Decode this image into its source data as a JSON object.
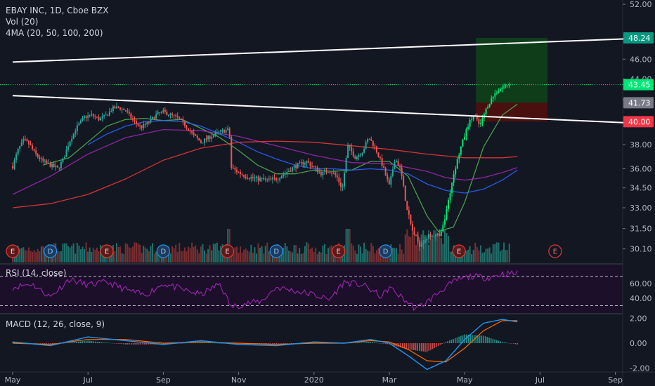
{
  "legend": {
    "title": "EBAY INC, 1D, Cboe BZX",
    "vol": "Vol (20)",
    "ma": "4MA (20, 50, 100, 200)",
    "rsi": "RSI (14, close)",
    "macd": "MACD (12, 26, close, 9)"
  },
  "colors": {
    "background": "#131722",
    "up": "#26a69a",
    "up_bright": "#00e676",
    "down": "#ef5350",
    "ma20": "#4caf50",
    "ma50": "#2962ff",
    "ma100": "#9c27b0",
    "ma200": "#e53935",
    "rsi": "#9c27b0",
    "macd": "#2196f3",
    "signal": "#ff6d00",
    "profit": "#0f3d1a",
    "loss": "#4a1010",
    "trendline": "#ffffff"
  },
  "chart_data": {
    "type": "line",
    "price_axis": {
      "ticks": [
        "52.00",
        "46.00",
        "44.00",
        "42.00",
        "38.00",
        "36.00",
        "34.50",
        "33.00",
        "31.50",
        "30.10"
      ],
      "ylim": [
        29.2,
        52.5
      ]
    },
    "badges": [
      {
        "label": "48.24",
        "value": 48.24,
        "color": "#089981"
      },
      {
        "label": "43.45",
        "value": 43.45,
        "color": "#00e676"
      },
      {
        "label": "41.73",
        "value": 41.73,
        "color": "#787b86"
      },
      {
        "label": "40.00",
        "value": 40.0,
        "color": "#f23645"
      }
    ],
    "time_axis": {
      "labels": [
        "May",
        "Jul",
        "Sep",
        "Nov",
        "2020",
        "Mar",
        "May",
        "Jul",
        "Sep"
      ],
      "months": [
        0,
        2,
        4,
        6,
        8,
        10,
        12,
        14,
        16
      ]
    },
    "price_series": [
      {
        "m": 0.0,
        "p": 36.2
      },
      {
        "m": 0.15,
        "p": 37.6
      },
      {
        "m": 0.3,
        "p": 38.4
      },
      {
        "m": 0.45,
        "p": 38.0
      },
      {
        "m": 0.6,
        "p": 37.2
      },
      {
        "m": 0.8,
        "p": 36.6
      },
      {
        "m": 1.0,
        "p": 36.3
      },
      {
        "m": 1.2,
        "p": 36.0
      },
      {
        "m": 1.35,
        "p": 36.8
      },
      {
        "m": 1.5,
        "p": 38.2
      },
      {
        "m": 1.7,
        "p": 39.5
      },
      {
        "m": 1.9,
        "p": 40.4
      },
      {
        "m": 2.1,
        "p": 40.6
      },
      {
        "m": 2.3,
        "p": 40.2
      },
      {
        "m": 2.5,
        "p": 40.6
      },
      {
        "m": 2.65,
        "p": 41.2
      },
      {
        "m": 2.8,
        "p": 41.3
      },
      {
        "m": 3.0,
        "p": 41.0
      },
      {
        "m": 3.2,
        "p": 40.1
      },
      {
        "m": 3.4,
        "p": 39.5
      },
      {
        "m": 3.6,
        "p": 39.9
      },
      {
        "m": 3.8,
        "p": 40.6
      },
      {
        "m": 4.0,
        "p": 40.9
      },
      {
        "m": 4.2,
        "p": 40.6
      },
      {
        "m": 4.4,
        "p": 40.3
      },
      {
        "m": 4.6,
        "p": 39.6
      },
      {
        "m": 4.8,
        "p": 38.8
      },
      {
        "m": 5.0,
        "p": 38.2
      },
      {
        "m": 5.2,
        "p": 38.6
      },
      {
        "m": 5.5,
        "p": 39.1
      },
      {
        "m": 5.75,
        "p": 39.3
      },
      {
        "m": 5.8,
        "p": 36.1
      },
      {
        "m": 6.0,
        "p": 35.7
      },
      {
        "m": 6.2,
        "p": 35.4
      },
      {
        "m": 6.5,
        "p": 35.2
      },
      {
        "m": 6.8,
        "p": 35.1
      },
      {
        "m": 7.0,
        "p": 35.2
      },
      {
        "m": 7.2,
        "p": 35.6
      },
      {
        "m": 7.5,
        "p": 36.2
      },
      {
        "m": 7.8,
        "p": 36.6
      },
      {
        "m": 8.0,
        "p": 36.1
      },
      {
        "m": 8.2,
        "p": 35.6
      },
      {
        "m": 8.4,
        "p": 35.9
      },
      {
        "m": 8.6,
        "p": 35.4
      },
      {
        "m": 8.75,
        "p": 34.4
      },
      {
        "m": 8.9,
        "p": 37.9
      },
      {
        "m": 9.1,
        "p": 36.9
      },
      {
        "m": 9.3,
        "p": 37.5
      },
      {
        "m": 9.45,
        "p": 38.6
      },
      {
        "m": 9.6,
        "p": 37.9
      },
      {
        "m": 9.8,
        "p": 36.4
      },
      {
        "m": 10.0,
        "p": 34.6
      },
      {
        "m": 10.15,
        "p": 36.9
      },
      {
        "m": 10.3,
        "p": 35.9
      },
      {
        "m": 10.45,
        "p": 33.2
      },
      {
        "m": 10.6,
        "p": 31.4
      },
      {
        "m": 10.8,
        "p": 30.4
      },
      {
        "m": 11.0,
        "p": 30.9
      },
      {
        "m": 11.2,
        "p": 31.1
      },
      {
        "m": 11.35,
        "p": 30.9
      },
      {
        "m": 11.5,
        "p": 32.5
      },
      {
        "m": 11.7,
        "p": 35.5
      },
      {
        "m": 11.9,
        "p": 37.8
      },
      {
        "m": 12.1,
        "p": 39.8
      },
      {
        "m": 12.25,
        "p": 40.6
      },
      {
        "m": 12.4,
        "p": 39.6
      },
      {
        "m": 12.6,
        "p": 41.4
      },
      {
        "m": 12.8,
        "p": 42.6
      },
      {
        "m": 13.0,
        "p": 43.2
      },
      {
        "m": 13.2,
        "p": 43.45
      }
    ],
    "moving_averages": [
      {
        "name": "MA20",
        "color_key": "ma20",
        "points": [
          [
            0.8,
            36.3
          ],
          [
            1.5,
            36.9
          ],
          [
            2.5,
            39.6
          ],
          [
            3.0,
            40.2
          ],
          [
            3.5,
            40.3
          ],
          [
            4.0,
            40.1
          ],
          [
            4.5,
            40.2
          ],
          [
            5.0,
            39.4
          ],
          [
            5.5,
            38.6
          ],
          [
            6.0,
            37.5
          ],
          [
            6.5,
            36.3
          ],
          [
            7.0,
            35.6
          ],
          [
            7.5,
            35.6
          ],
          [
            8.0,
            35.9
          ],
          [
            8.5,
            35.8
          ],
          [
            9.0,
            35.9
          ],
          [
            9.5,
            36.6
          ],
          [
            10.0,
            36.6
          ],
          [
            10.5,
            35.4
          ],
          [
            11.0,
            32.4
          ],
          [
            11.3,
            31.3
          ],
          [
            11.7,
            31.6
          ],
          [
            12.0,
            33.4
          ],
          [
            12.5,
            37.8
          ],
          [
            13.0,
            40.6
          ],
          [
            13.4,
            41.6
          ]
        ]
      },
      {
        "name": "MA50",
        "color_key": "ma50",
        "points": [
          [
            2.0,
            38.0
          ],
          [
            2.5,
            38.9
          ],
          [
            3.0,
            39.6
          ],
          [
            3.5,
            40.0
          ],
          [
            4.0,
            40.1
          ],
          [
            4.5,
            40.0
          ],
          [
            5.0,
            39.6
          ],
          [
            5.5,
            38.9
          ],
          [
            6.0,
            38.2
          ],
          [
            6.5,
            37.4
          ],
          [
            7.0,
            36.8
          ],
          [
            7.5,
            36.3
          ],
          [
            8.0,
            36.0
          ],
          [
            8.5,
            36.0
          ],
          [
            9.0,
            35.9
          ],
          [
            9.5,
            36.0
          ],
          [
            10.0,
            35.9
          ],
          [
            10.5,
            35.6
          ],
          [
            11.0,
            34.8
          ],
          [
            11.5,
            34.3
          ],
          [
            12.0,
            34.1
          ],
          [
            12.5,
            34.4
          ],
          [
            13.0,
            35.1
          ],
          [
            13.4,
            35.9
          ]
        ]
      },
      {
        "name": "MA100",
        "color_key": "ma100",
        "points": [
          [
            0.0,
            34.0
          ],
          [
            1.0,
            35.4
          ],
          [
            2.0,
            37.2
          ],
          [
            3.0,
            38.6
          ],
          [
            4.0,
            39.3
          ],
          [
            5.0,
            39.2
          ],
          [
            6.0,
            38.7
          ],
          [
            7.0,
            37.9
          ],
          [
            8.0,
            37.1
          ],
          [
            9.0,
            36.5
          ],
          [
            10.0,
            36.4
          ],
          [
            11.0,
            35.8
          ],
          [
            11.5,
            35.3
          ],
          [
            12.0,
            35.1
          ],
          [
            12.5,
            35.3
          ],
          [
            13.0,
            35.7
          ],
          [
            13.4,
            36.1
          ]
        ]
      },
      {
        "name": "MA200",
        "color_key": "ma200",
        "points": [
          [
            0.0,
            33.0
          ],
          [
            1.0,
            33.3
          ],
          [
            2.0,
            34.0
          ],
          [
            3.0,
            35.2
          ],
          [
            4.0,
            36.7
          ],
          [
            5.0,
            37.7
          ],
          [
            6.0,
            38.2
          ],
          [
            7.0,
            38.3
          ],
          [
            8.0,
            38.2
          ],
          [
            9.0,
            37.9
          ],
          [
            10.0,
            37.6
          ],
          [
            11.0,
            37.2
          ],
          [
            12.0,
            36.9
          ],
          [
            13.0,
            36.9
          ],
          [
            13.4,
            37.0
          ]
        ]
      }
    ],
    "trendlines": [
      {
        "from": [
          0.0,
          45.7
        ],
        "to": [
          17.0,
          48.24
        ]
      },
      {
        "from": [
          0.0,
          42.4
        ],
        "to": [
          17.0,
          39.8
        ]
      }
    ],
    "position": {
      "entry": 41.73,
      "target": 48.24,
      "stop": 40.0,
      "start_month": 12.3,
      "end_month": 14.2
    },
    "dotted_lines": [
      {
        "value": 43.45,
        "color": "#00e676"
      }
    ],
    "events": [
      {
        "label": "E",
        "m": 0.0,
        "type": "earnings"
      },
      {
        "label": "D",
        "m": 1.0,
        "type": "dividend"
      },
      {
        "label": "E",
        "m": 2.5,
        "type": "earnings"
      },
      {
        "label": "D",
        "m": 4.0,
        "type": "dividend"
      },
      {
        "label": "E",
        "m": 5.7,
        "type": "earnings"
      },
      {
        "label": "D",
        "m": 7.0,
        "type": "dividend"
      },
      {
        "label": "E",
        "m": 8.65,
        "type": "earnings"
      },
      {
        "label": "D",
        "m": 9.9,
        "type": "dividend"
      },
      {
        "label": "E",
        "m": 11.85,
        "type": "earnings"
      },
      {
        "label": "E",
        "m": 14.4,
        "type": "earnings-future"
      }
    ],
    "rsi": {
      "ticks": [
        "60.00",
        "40.00"
      ],
      "ylim": [
        20,
        85
      ],
      "upper": 70,
      "lower": 30,
      "points": [
        [
          0.0,
          55
        ],
        [
          0.5,
          60
        ],
        [
          1.0,
          42
        ],
        [
          1.5,
          66
        ],
        [
          2.0,
          58
        ],
        [
          2.5,
          62
        ],
        [
          3.0,
          52
        ],
        [
          3.5,
          44
        ],
        [
          4.0,
          60
        ],
        [
          4.5,
          52
        ],
        [
          5.0,
          45
        ],
        [
          5.5,
          60
        ],
        [
          5.8,
          28
        ],
        [
          6.2,
          33
        ],
        [
          6.6,
          36
        ],
        [
          7.0,
          55
        ],
        [
          7.5,
          50
        ],
        [
          8.0,
          45
        ],
        [
          8.4,
          38
        ],
        [
          8.8,
          62
        ],
        [
          9.3,
          58
        ],
        [
          9.8,
          42
        ],
        [
          10.0,
          55
        ],
        [
          10.4,
          38
        ],
        [
          10.7,
          26
        ],
        [
          11.0,
          35
        ],
        [
          11.4,
          52
        ],
        [
          11.8,
          65
        ],
        [
          12.2,
          70
        ],
        [
          12.6,
          68
        ],
        [
          13.0,
          73
        ],
        [
          13.4,
          74
        ]
      ]
    },
    "macd": {
      "ticks": [
        "2.00",
        "0.00",
        "-2.00"
      ],
      "ylim": [
        -2.3,
        2.3
      ],
      "macd_line": [
        [
          0.0,
          0.1
        ],
        [
          1.0,
          -0.2
        ],
        [
          2.0,
          0.5
        ],
        [
          3.0,
          0.2
        ],
        [
          4.0,
          -0.1
        ],
        [
          5.0,
          0.2
        ],
        [
          6.0,
          -0.1
        ],
        [
          7.0,
          -0.2
        ],
        [
          8.0,
          0.1
        ],
        [
          8.8,
          0.0
        ],
        [
          9.5,
          0.3
        ],
        [
          10.0,
          0.0
        ],
        [
          10.5,
          -1.0
        ],
        [
          11.0,
          -2.1
        ],
        [
          11.5,
          -1.4
        ],
        [
          12.0,
          0.3
        ],
        [
          12.5,
          1.6
        ],
        [
          13.0,
          1.9
        ],
        [
          13.4,
          1.7
        ]
      ],
      "signal_line": [
        [
          0.0,
          0.0
        ],
        [
          1.0,
          -0.1
        ],
        [
          2.0,
          0.3
        ],
        [
          3.0,
          0.3
        ],
        [
          4.0,
          0.0
        ],
        [
          5.0,
          0.1
        ],
        [
          6.0,
          0.0
        ],
        [
          7.0,
          -0.1
        ],
        [
          8.0,
          0.0
        ],
        [
          8.8,
          0.0
        ],
        [
          9.5,
          0.2
        ],
        [
          10.0,
          0.1
        ],
        [
          10.5,
          -0.5
        ],
        [
          11.0,
          -1.4
        ],
        [
          11.5,
          -1.5
        ],
        [
          12.0,
          -0.4
        ],
        [
          12.5,
          1.0
        ],
        [
          13.0,
          1.8
        ],
        [
          13.4,
          1.8
        ]
      ]
    }
  }
}
